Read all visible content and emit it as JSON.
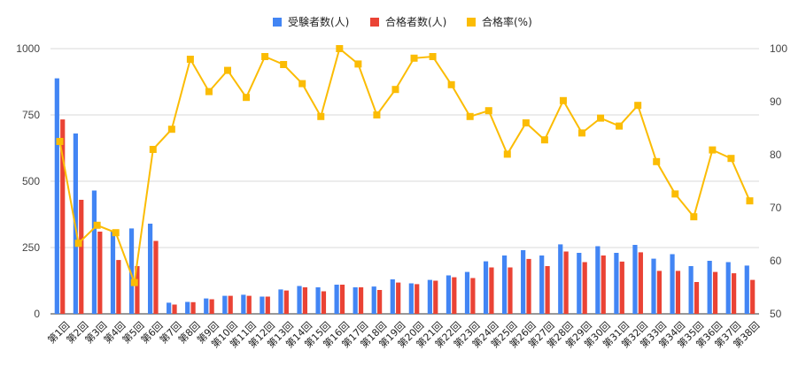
{
  "chart_data": {
    "type": "bar",
    "title": "",
    "categories": [
      "第1回",
      "第2回",
      "第3回",
      "第4回",
      "第5回",
      "第6回",
      "第7回",
      "第8回",
      "第9回",
      "第10回",
      "第11回",
      "第12回",
      "第13回",
      "第14回",
      "第15回",
      "第16回",
      "第17回",
      "第18回",
      "第19回",
      "第20回",
      "第21回",
      "第22回",
      "第23回",
      "第24回",
      "第25回",
      "第26回",
      "第27回",
      "第28回",
      "第29回",
      "第30回",
      "第31回",
      "第32回",
      "第33回",
      "第34回",
      "第35回",
      "第36回",
      "第37回",
      "第38回"
    ],
    "series": [
      {
        "name": "受験者数(人)",
        "type": "bar",
        "axis": "left",
        "color": "#4285F4",
        "values": [
          888,
          680,
          465,
          315,
          322,
          340,
          42,
          45,
          58,
          68,
          72,
          65,
          92,
          105,
          100,
          110,
          100,
          103,
          130,
          115,
          128,
          145,
          158,
          198,
          220,
          240,
          220,
          262,
          230,
          255,
          230,
          260,
          208,
          225,
          180,
          200,
          195,
          182
        ]
      },
      {
        "name": "合格者数(人)",
        "type": "bar",
        "axis": "left",
        "color": "#EA4335",
        "values": [
          733,
          430,
          310,
          203,
          180,
          275,
          35,
          44,
          55,
          68,
          68,
          65,
          88,
          100,
          85,
          110,
          100,
          90,
          118,
          112,
          125,
          138,
          135,
          175,
          175,
          207,
          180,
          235,
          195,
          220,
          197,
          232,
          162,
          162,
          120,
          158,
          153,
          128
        ]
      },
      {
        "name": "合格率(%)",
        "type": "line",
        "axis": "right",
        "color": "#FBBC04",
        "values": [
          82.5,
          63.3,
          66.7,
          65.3,
          55.9,
          81.0,
          84.8,
          98.0,
          91.9,
          95.9,
          90.8,
          98.5,
          97.0,
          93.4,
          87.2,
          100.0,
          97.1,
          87.5,
          92.3,
          98.2,
          98.5,
          93.2,
          87.2,
          88.3,
          80.1,
          86.0,
          82.8,
          90.2,
          84.1,
          86.9,
          85.4,
          89.3,
          78.7,
          72.6,
          68.3,
          80.9,
          79.3,
          71.3
        ]
      }
    ],
    "y_left": {
      "min": 0,
      "max": 1000,
      "ticks": [
        0,
        250,
        500,
        750,
        1000
      ]
    },
    "y_right": {
      "min": 50,
      "max": 100,
      "ticks": [
        50,
        60,
        70,
        80,
        90,
        100
      ]
    },
    "legend": "top",
    "grid": true
  }
}
